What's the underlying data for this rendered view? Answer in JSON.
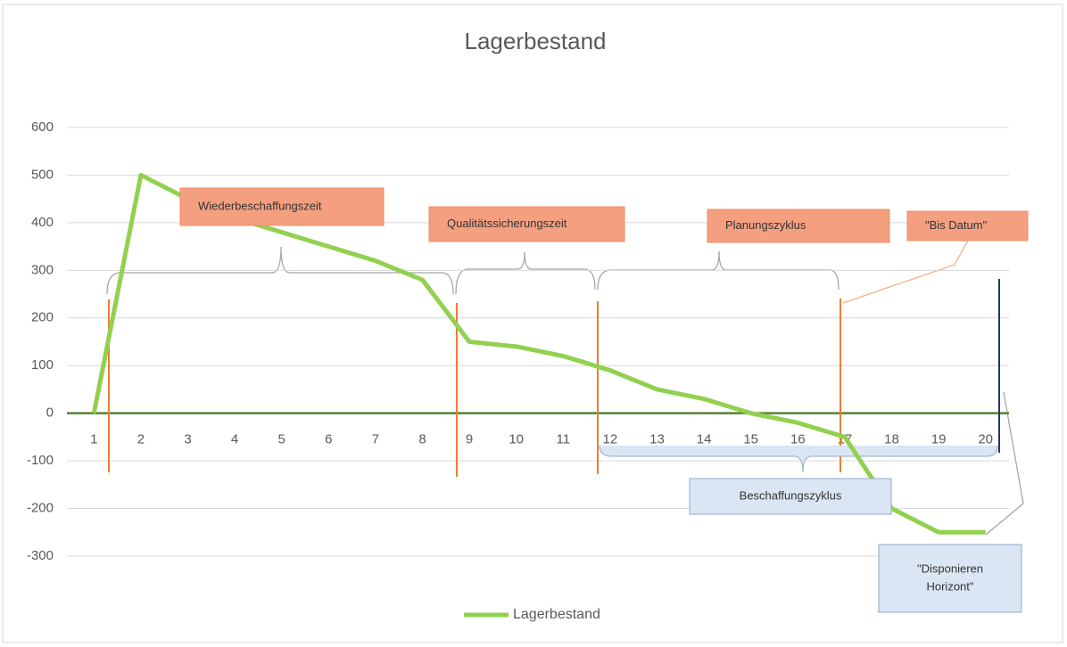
{
  "chart_data": {
    "type": "line",
    "title": "Lagerbestand",
    "categories": [
      1,
      2,
      3,
      4,
      5,
      6,
      7,
      8,
      9,
      10,
      11,
      12,
      13,
      14,
      15,
      16,
      17,
      18,
      19,
      20
    ],
    "series": [
      {
        "name": "Lagerbestand",
        "color": "#92d050",
        "values": [
          0,
          500,
          450,
          410,
          380,
          350,
          320,
          280,
          150,
          140,
          120,
          90,
          50,
          30,
          0,
          -20,
          -50,
          -200,
          -250,
          -250
        ]
      }
    ],
    "ylim": [
      -300,
      600
    ],
    "yticks": [
      -300,
      -200,
      -100,
      0,
      100,
      200,
      300,
      400,
      500,
      600
    ],
    "grid": true,
    "legend": "bottom",
    "annotations": [
      {
        "lines": [
          "Wiederbeschaffungszeit"
        ],
        "color": "#f4a080"
      },
      {
        "lines": [
          "Qualitätssicherungszeit"
        ],
        "color": "#f4a080"
      },
      {
        "lines": [
          "Planungszyklus"
        ],
        "color": "#f4a080"
      },
      {
        "lines": [
          "\"Bis Datum\""
        ],
        "color": "#f4a080"
      },
      {
        "lines": [
          "Beschaffungszyklus"
        ],
        "color": "#dae6f3"
      },
      {
        "lines": [
          "\"Disponieren",
          "Horizont\""
        ],
        "color": "#dae6f3"
      }
    ]
  }
}
